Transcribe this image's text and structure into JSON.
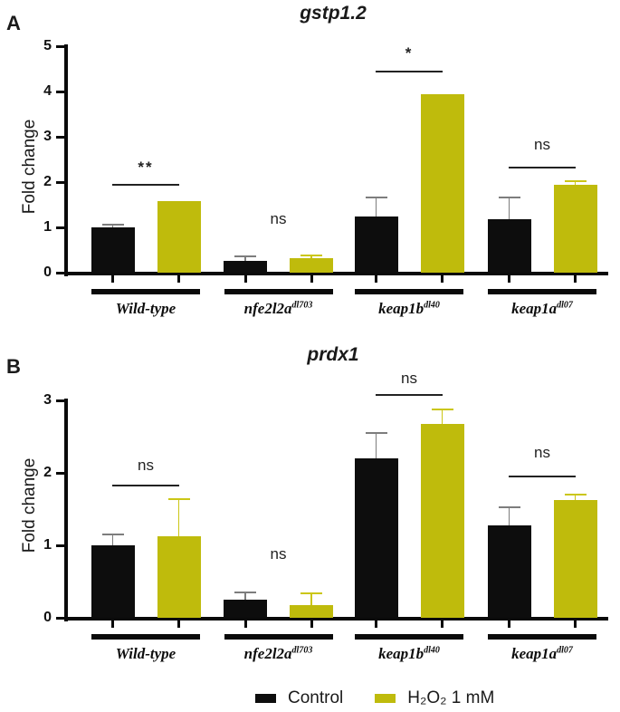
{
  "panel_labels": [
    "A",
    "B"
  ],
  "legend": {
    "items": [
      {
        "label": "Control",
        "color": "#0d0d0d"
      },
      {
        "label": "H₂O₂ 1 mM",
        "color": "#bfbb0c"
      }
    ]
  },
  "chart_data": [
    {
      "type": "bar",
      "panel": "A",
      "title": "gstp1.2",
      "ylabel": "Fold change",
      "xlabel": "",
      "ylim": [
        0,
        5
      ],
      "yticks": [
        "0",
        "1",
        "2",
        "3",
        "4",
        "5"
      ],
      "grid": false,
      "legend_position": "shared-bottom",
      "categories": [
        {
          "name": "Wild-type",
          "sup": ""
        },
        {
          "name": "nfe2l2a",
          "sup": "dl703"
        },
        {
          "name": "keap1b",
          "sup": "dl40"
        },
        {
          "name": "keap1a",
          "sup": "dl07"
        }
      ],
      "series": [
        {
          "name": "Control",
          "color": "#0d0d0d",
          "error_color": "#7d7d7d",
          "values": [
            1.0,
            0.26,
            1.25,
            1.18
          ],
          "errors_plus": [
            0.06,
            0.1,
            0.42,
            0.48
          ]
        },
        {
          "name": "H₂O₂ 1 mM",
          "color": "#bfbb0c",
          "error_color": "#cbc616",
          "values": [
            1.58,
            0.33,
            3.95,
            1.95
          ],
          "errors_plus": [
            0.0,
            0.05,
            0.0,
            0.08
          ]
        }
      ],
      "significance": [
        {
          "text": "**",
          "line": true,
          "line_y": 1.96,
          "text_y": 2.18
        },
        {
          "text": "ns",
          "line": false,
          "line_y": null,
          "text_y": 1.02
        },
        {
          "text": "*",
          "line": true,
          "line_y": 4.46,
          "text_y": 4.7
        },
        {
          "text": "ns",
          "line": true,
          "line_y": 2.34,
          "text_y": 2.66
        }
      ]
    },
    {
      "type": "bar",
      "panel": "B",
      "title": "prdx1",
      "ylabel": "Fold change",
      "xlabel": "",
      "ylim": [
        0,
        3
      ],
      "yticks": [
        "0",
        "1",
        "2",
        "3"
      ],
      "grid": false,
      "legend_position": "shared-bottom",
      "categories": [
        {
          "name": "Wild-type",
          "sup": ""
        },
        {
          "name": "nfe2l2a",
          "sup": "dl703"
        },
        {
          "name": "keap1b",
          "sup": "dl40"
        },
        {
          "name": "keap1a",
          "sup": "dl07"
        }
      ],
      "series": [
        {
          "name": "Control",
          "color": "#0d0d0d",
          "error_color": "#7d7d7d",
          "values": [
            1.0,
            0.25,
            2.2,
            1.28
          ],
          "errors_plus": [
            0.15,
            0.1,
            0.35,
            0.24
          ]
        },
        {
          "name": "H₂O₂ 1 mM",
          "color": "#bfbb0c",
          "error_color": "#cbc616",
          "values": [
            1.12,
            0.18,
            2.68,
            1.62
          ],
          "errors_plus": [
            0.52,
            0.16,
            0.2,
            0.08
          ]
        }
      ],
      "significance": [
        {
          "text": "ns",
          "line": true,
          "line_y": 1.84,
          "text_y": 2.0
        },
        {
          "text": "ns",
          "line": false,
          "line_y": null,
          "text_y": 0.78
        },
        {
          "text": "ns",
          "line": true,
          "line_y": 3.09,
          "text_y": 3.2
        },
        {
          "text": "ns",
          "line": true,
          "line_y": 1.96,
          "text_y": 2.18
        }
      ]
    }
  ]
}
